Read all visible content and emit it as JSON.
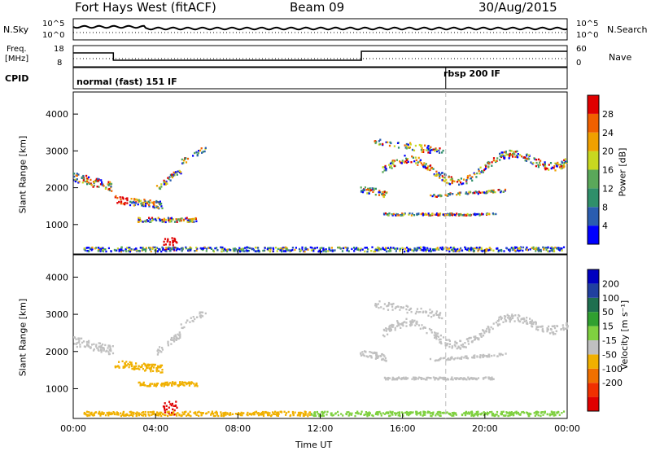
{
  "header": {
    "station": "Fort Hays West (fitACF)",
    "beam": "Beam 09",
    "date": "30/Aug/2015"
  },
  "labels": {
    "nsky": "N.Sky",
    "nsearch": "N.Search",
    "freq": "Freq.",
    "freq_unit": "[MHz]",
    "nave": "Nave",
    "cpid": "CPID",
    "cpid_mode_1": "normal (fast) 151 IF",
    "cpid_mode_2": "rbsp 200 IF"
  },
  "noise_axis": {
    "left_top": "10^5",
    "left_bottom": "10^0",
    "right_top": "10^5",
    "right_bottom": "10^0"
  },
  "freq_axis": {
    "left_ticks": [
      "18",
      "8"
    ],
    "right_ticks": [
      "60",
      "0"
    ]
  },
  "colors": {
    "power": [
      "#0000ff",
      "#2a5db0",
      "#2f8f6a",
      "#5aa85a",
      "#c8d820",
      "#f0a000",
      "#f06000",
      "#e00000"
    ],
    "velocity": [
      "#e00000",
      "#f03000",
      "#f07000",
      "#f0b000",
      "#c0c0c0",
      "#7fd040",
      "#30a030",
      "#1f6f4f",
      "#2040a0",
      "#0000c0"
    ]
  },
  "chart_data": [
    {
      "type": "heatmap",
      "name": "power",
      "ylabel": "Slant Range [km]",
      "xlabel": "Time UT",
      "ylim": [
        200,
        4600
      ],
      "xlim": [
        0,
        24
      ],
      "x_ticks": [
        "00:00",
        "04:00",
        "08:00",
        "12:00",
        "16:00",
        "20:00",
        "00:00"
      ],
      "y_ticks": [
        1000,
        2000,
        3000,
        4000
      ],
      "colorbar_label": "Power [dB]",
      "colorbar_ticks": [
        4,
        8,
        12,
        16,
        20,
        24,
        28
      ]
    },
    {
      "type": "heatmap",
      "name": "velocity",
      "ylabel": "Slant Range [km]",
      "xlabel": "Time UT",
      "ylim": [
        200,
        4600
      ],
      "xlim": [
        0,
        24
      ],
      "x_ticks": [
        "00:00",
        "04:00",
        "08:00",
        "12:00",
        "16:00",
        "20:00",
        "00:00"
      ],
      "y_ticks": [
        1000,
        2000,
        3000,
        4000
      ],
      "colorbar_label": "Velocity [m s⁻¹]",
      "colorbar_ticks": [
        200,
        100,
        50,
        15,
        -15,
        -50,
        -100,
        -200
      ]
    }
  ],
  "cpid_change_hour": 18.1,
  "freq_step": {
    "high_start": 0,
    "low_start": 1.95,
    "high_again": 14.0
  }
}
